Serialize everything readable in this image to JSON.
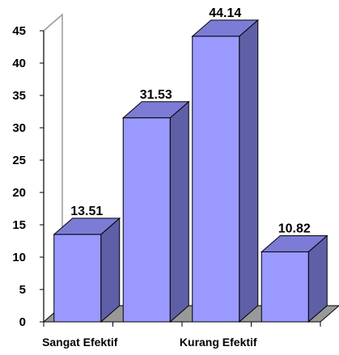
{
  "chart_data": {
    "type": "bar",
    "title": "",
    "xlabel": "",
    "ylabel": "",
    "ylim": [
      0,
      45
    ],
    "yticks": [
      0,
      5,
      10,
      15,
      20,
      25,
      30,
      35,
      40,
      45
    ],
    "style": "3d",
    "grid": false,
    "categories": [
      "Sangat Efektif",
      "",
      "Kurang Efektif",
      ""
    ],
    "values": [
      13.51,
      31.53,
      44.14,
      10.82
    ],
    "data_labels": [
      "13.51",
      "31.53",
      "44.14",
      "10.82"
    ],
    "colors": {
      "bar_front": "#9999ff",
      "bar_top": "#7c7cd6",
      "bar_side": "#5f5fa8",
      "bar_stroke": "#000000",
      "floor": "#999999",
      "wall_stroke": "#999999"
    }
  }
}
